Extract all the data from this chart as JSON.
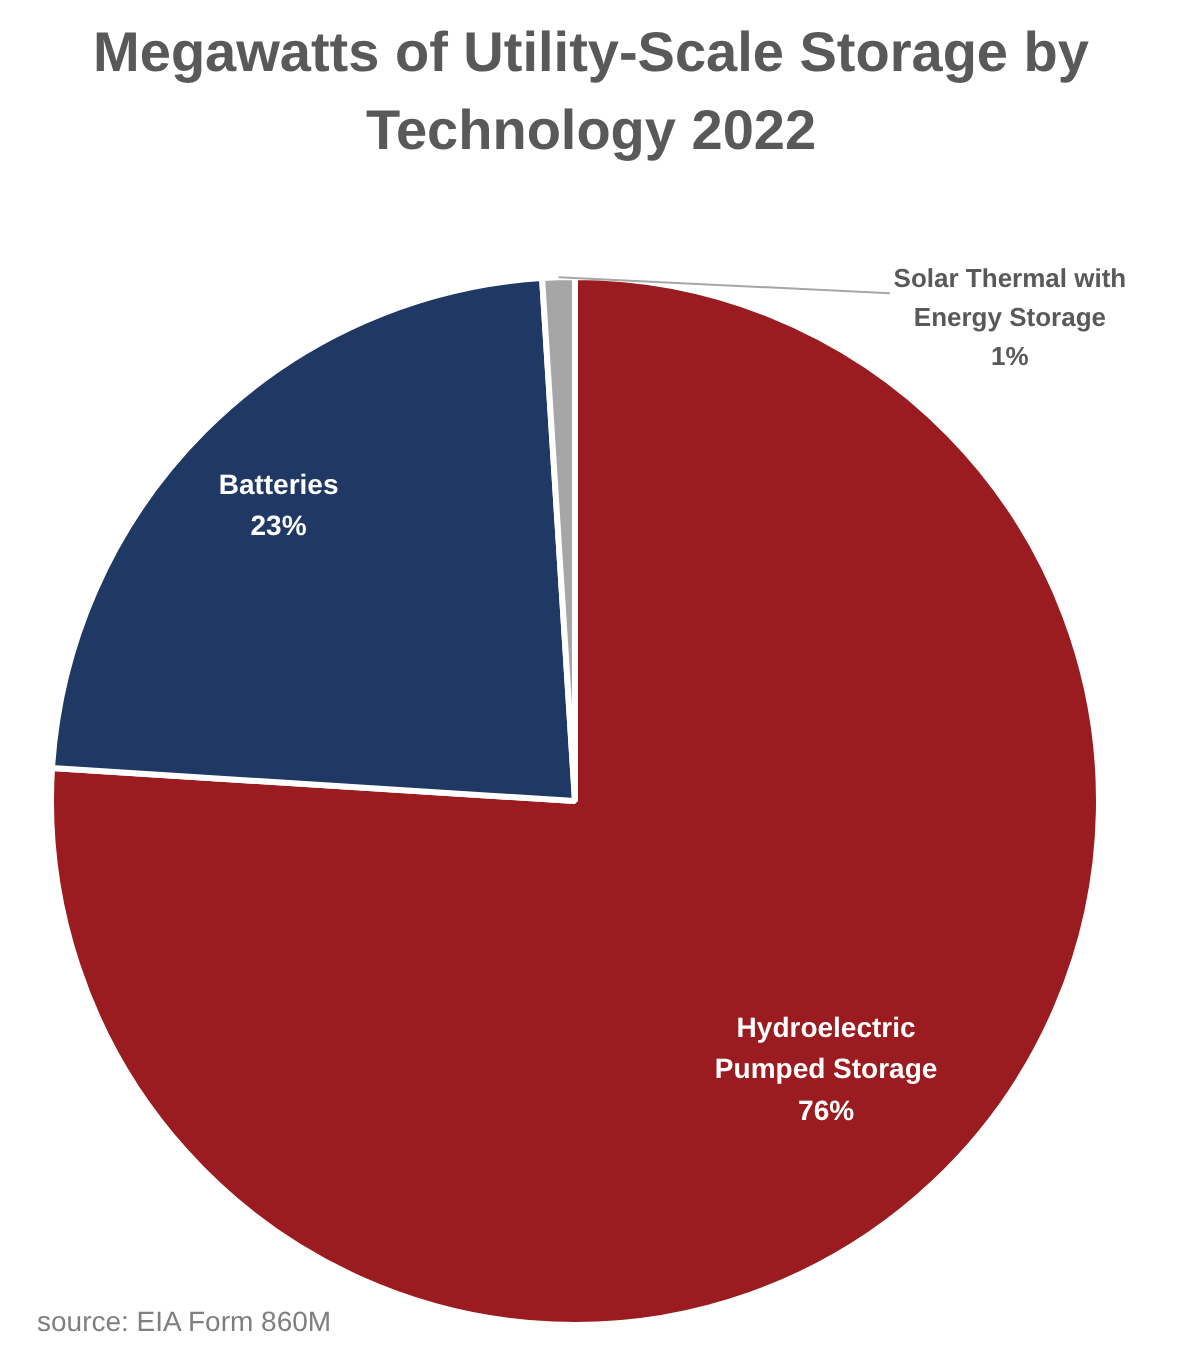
{
  "chart_data": {
    "type": "pie",
    "title": "Megawatts of Utility-Scale Storage by Technology 2022",
    "categories": [
      "Hydroelectric Pumped Storage",
      "Batteries",
      "Solar Thermal with Energy Storage"
    ],
    "values": [
      76,
      23,
      1
    ],
    "colors": [
      "#9b1c20",
      "#1f3864",
      "#a6a6a6"
    ],
    "value_labels": [
      "76%",
      "23%",
      "1%"
    ],
    "annotations": [
      "source: EIA Form 860M"
    ]
  }
}
